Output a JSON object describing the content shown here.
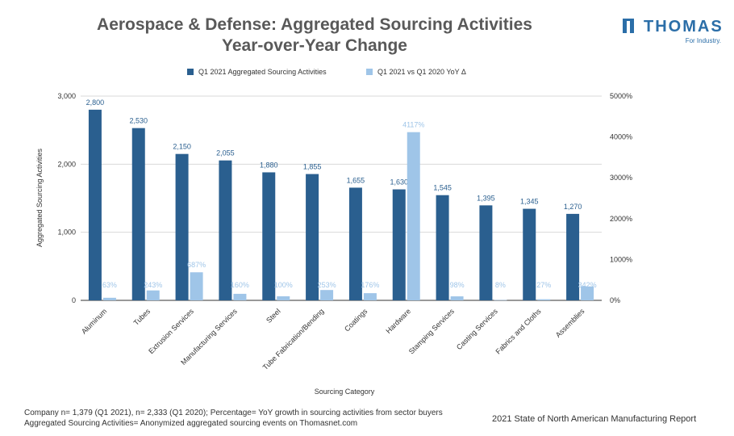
{
  "title_line1": "Aerospace & Defense: Aggregated Sourcing Activities",
  "title_line2": "Year-over-Year Change",
  "logo": {
    "name": "THOMAS",
    "tagline": "For Industry."
  },
  "footnote": {
    "line1": "Company n= 1,379 (Q1 2021), n= 2,333 (Q1 2020); Percentage= YoY growth in sourcing activities from sector buyers",
    "line2": "Aggregated Sourcing Activities= Anonymized aggregated sourcing events on Thomasnet.com"
  },
  "source": "2021 State of North American Manufacturing Report",
  "chart_data": {
    "type": "bar",
    "xlabel": "Sourcing Category",
    "ylabel": "Aggregated Sourcing Activities",
    "ylim": [
      0,
      3000
    ],
    "y2lim": [
      0,
      5000
    ],
    "yticks": [
      "0",
      "1,000",
      "2,000",
      "3,000"
    ],
    "y2ticks": [
      "0%",
      "1000%",
      "2000%",
      "3000%",
      "4000%",
      "5000%"
    ],
    "legend_position": "top",
    "grid": true,
    "categories": [
      "Aluminum",
      "Tubes",
      "Extrusion Services",
      "Manufacturing Services",
      "Steel",
      "Tube Fabrication/Bending",
      "Coatings",
      "Hardware",
      "Stamping Services",
      "Casting Services",
      "Fabrics and Cloths",
      "Assemblies"
    ],
    "series": [
      {
        "name": "Q1 2021 Aggregated Sourcing Activities",
        "axis": "left",
        "color": "#2a5f8f",
        "label_color": "#2a5f8f",
        "values": [
          2800,
          2530,
          2150,
          2055,
          1880,
          1855,
          1655,
          1630,
          1545,
          1395,
          1345,
          1270
        ],
        "labels": [
          "2,800",
          "2,530",
          "2,150",
          "2,055",
          "1,880",
          "1,855",
          "1,655",
          "1,630",
          "1,545",
          "1,395",
          "1,345",
          "1,270"
        ]
      },
      {
        "name": "Q1 2021 vs Q1 2020 YoY Δ",
        "axis": "right",
        "color": "#9fc5e8",
        "label_color": "#9fc5e8",
        "values": [
          63,
          243,
          687,
          160,
          100,
          253,
          176,
          4117,
          98,
          8,
          27,
          342
        ],
        "labels": [
          "63%",
          "243%",
          "687%",
          "160%",
          "100%",
          "253%",
          "176%",
          "4117%",
          "98%",
          "8%",
          "27%",
          "342%"
        ]
      }
    ]
  }
}
